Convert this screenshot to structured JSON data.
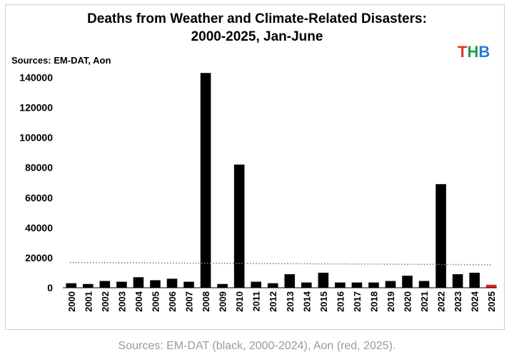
{
  "chart_data": {
    "type": "bar",
    "title": "Deaths from Weather and Climate-Related Disasters:",
    "subtitle": "2000-2025, Jan-June",
    "source_label": "Sources: EM-DAT, Aon",
    "logo": [
      "T",
      "H",
      "B"
    ],
    "logo_colors": [
      "#e8332a",
      "#1f9d4a",
      "#2a7bd6"
    ],
    "categories": [
      "2000",
      "2001",
      "2002",
      "2003",
      "2004",
      "2005",
      "2006",
      "2007",
      "2008",
      "2009",
      "2010",
      "2011",
      "2012",
      "2013",
      "2014",
      "2015",
      "2016",
      "2017",
      "2018",
      "2019",
      "2020",
      "2021",
      "2022",
      "2023",
      "2024",
      "2025"
    ],
    "values": [
      3000,
      2500,
      4500,
      4000,
      7000,
      5000,
      6000,
      4000,
      143000,
      2500,
      82000,
      4000,
      3000,
      9000,
      3500,
      10000,
      3500,
      3500,
      3500,
      4500,
      8000,
      4500,
      69000,
      9000,
      10000,
      2000
    ],
    "bar_colors": [
      "#000000",
      "#000000",
      "#000000",
      "#000000",
      "#000000",
      "#000000",
      "#000000",
      "#000000",
      "#000000",
      "#000000",
      "#000000",
      "#000000",
      "#000000",
      "#000000",
      "#000000",
      "#000000",
      "#000000",
      "#000000",
      "#000000",
      "#000000",
      "#000000",
      "#000000",
      "#000000",
      "#000000",
      "#000000",
      "#e02020"
    ],
    "trend": {
      "start": 16800,
      "end": 15300,
      "color": "#4a90c8",
      "style": "dotted"
    },
    "ylim": [
      0,
      145000
    ],
    "yticks": [
      0,
      20000,
      40000,
      60000,
      80000,
      100000,
      120000,
      140000
    ],
    "xlabel": "",
    "ylabel": "",
    "grid": false
  },
  "caption": "Sources: EM-DAT (black, 2000-2024), Aon (red, 2025)."
}
